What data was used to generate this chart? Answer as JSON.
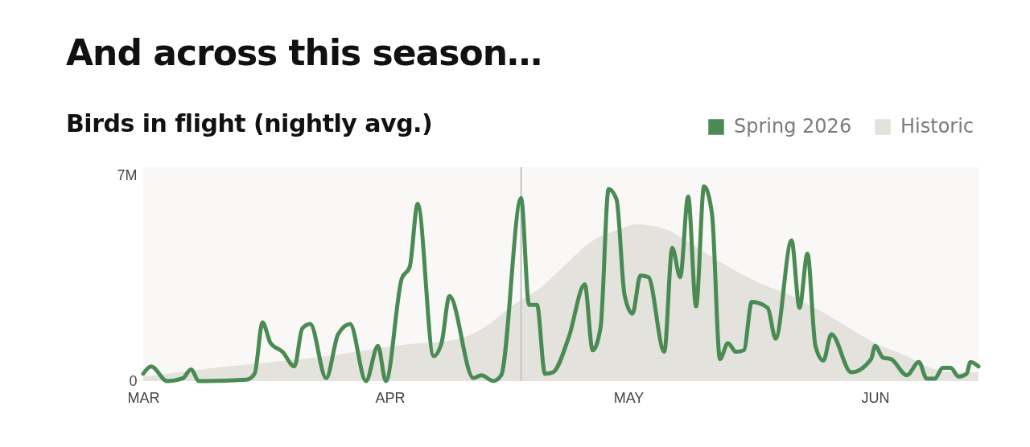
{
  "chart_data": {
    "type": "line",
    "title": "And across this season…",
    "subtitle": "Birds in flight (nightly avg.)",
    "xlim": [
      "2026-03-01",
      "2026-06-14"
    ],
    "xticks": [
      {
        "value": "2026-03-01",
        "label": "MAR"
      },
      {
        "value": "2026-04-01",
        "label": "APR"
      },
      {
        "value": "2026-05-01",
        "label": "MAY"
      },
      {
        "value": "2026-06-01",
        "label": "JUN"
      }
    ],
    "ylim": [
      0,
      7.3
    ],
    "yticks": [
      0,
      {
        "value": 7,
        "label": "7M"
      }
    ],
    "legend": "top right",
    "ref_lines": [
      {
        "axis": "x",
        "value": "2026-04-17T12:00",
        "color": "#c4c4c4"
      }
    ],
    "series": [
      {
        "name": "Spring 2026",
        "color": "#4a8a53",
        "x": [
          "2026-03-01",
          "2026-03-02",
          "2026-03-04",
          "2026-03-06",
          "2026-03-07",
          "2026-03-08",
          "2026-03-14",
          "2026-03-15",
          "2026-03-16",
          "2026-03-17",
          "2026-03-18T12:00",
          "2026-03-20",
          "2026-03-21",
          "2026-03-22",
          "2026-03-24",
          "2026-03-25T12:00",
          "2026-03-27",
          "2026-03-29",
          "2026-03-30T12:00",
          "2026-03-31T12:00",
          "2026-04-02T12:00",
          "2026-04-03T12:00",
          "2026-04-04T12:00",
          "2026-04-06T12:00",
          "2026-04-07T12:00",
          "2026-04-08T12:00",
          "2026-04-11T12:00",
          "2026-04-12T12:00",
          "2026-04-14",
          "2026-04-15",
          "2026-04-17T12:00",
          "2026-04-18T12:00",
          "2026-04-19T12:00",
          "2026-04-20T12:00",
          "2026-04-21T12:00",
          "2026-04-23T12:00",
          "2026-04-25T12:00",
          "2026-04-26T12:00",
          "2026-04-27T12:00",
          "2026-04-28T12:00",
          "2026-04-29T12:00",
          "2026-04-30T12:00",
          "2026-05-01T12:00",
          "2026-05-02T12:00",
          "2026-05-03T12:00",
          "2026-05-05T12:00",
          "2026-05-06T12:00",
          "2026-05-07T12:00",
          "2026-05-08T12:00",
          "2026-05-09T12:00",
          "2026-05-10T12:00",
          "2026-05-11T12:00",
          "2026-05-12T12:00",
          "2026-05-13T12:00",
          "2026-05-14T12:00",
          "2026-05-15T12:00",
          "2026-05-16T12:00",
          "2026-05-18T12:00",
          "2026-05-19T12:00",
          "2026-05-21T12:00",
          "2026-05-22T12:00",
          "2026-05-23T12:00",
          "2026-05-24T12:00",
          "2026-05-25T12:00",
          "2026-05-26T12:00",
          "2026-05-29",
          "2026-05-31T12:00",
          "2026-06-01",
          "2026-06-02",
          "2026-06-03",
          "2026-06-05",
          "2026-06-06T12:00",
          "2026-06-07T12:00",
          "2026-06-08T12:00",
          "2026-06-09T12:00",
          "2026-06-10T12:00",
          "2026-06-11T12:00",
          "2026-06-12T12:00",
          "2026-06-13",
          "2026-06-14"
        ],
        "values": [
          0.25,
          0.5,
          0,
          0.1,
          0.4,
          0,
          0.05,
          0.25,
          2.0,
          1.3,
          1.0,
          0.5,
          1.8,
          1.95,
          0.1,
          1.6,
          1.95,
          0,
          1.2,
          0,
          3.5,
          3.9,
          6.05,
          0.85,
          1.3,
          2.9,
          0.1,
          0.2,
          0,
          0.2,
          6.25,
          2.6,
          2.6,
          0.25,
          0.3,
          1.5,
          3.3,
          1.05,
          1.85,
          6.55,
          6.2,
          2.95,
          2.3,
          3.6,
          3.55,
          1.0,
          4.55,
          3.55,
          6.3,
          2.55,
          6.65,
          5.7,
          0.75,
          1.3,
          1.0,
          1.05,
          2.7,
          2.5,
          1.45,
          4.8,
          2.5,
          4.35,
          1.2,
          0.7,
          1.6,
          0.3,
          0.75,
          1.2,
          0.8,
          0.75,
          0.2,
          0.65,
          0.08,
          0.08,
          0.45,
          0.45,
          0.15,
          0.25,
          0.65,
          0.5
        ]
      },
      {
        "name": "Historic",
        "type": "area",
        "color": "#e4e2dd",
        "x": [
          "2026-03-01",
          "2026-03-10",
          "2026-03-24",
          "2026-04-03",
          "2026-04-09",
          "2026-04-13",
          "2026-04-16",
          "2026-04-20",
          "2026-04-23",
          "2026-04-26",
          "2026-04-30",
          "2026-05-02",
          "2026-05-06",
          "2026-05-07",
          "2026-05-12",
          "2026-05-17",
          "2026-05-22",
          "2026-05-27",
          "2026-06-01",
          "2026-06-05",
          "2026-06-08",
          "2026-06-11",
          "2026-06-14"
        ],
        "values": [
          0.15,
          0.45,
          0.85,
          1.25,
          1.4,
          1.85,
          2.5,
          3.2,
          3.95,
          4.7,
          5.2,
          5.35,
          5.15,
          5.0,
          4.15,
          3.4,
          2.85,
          2.1,
          1.3,
          0.85,
          0.45,
          0.3,
          0.3
        ]
      }
    ]
  }
}
